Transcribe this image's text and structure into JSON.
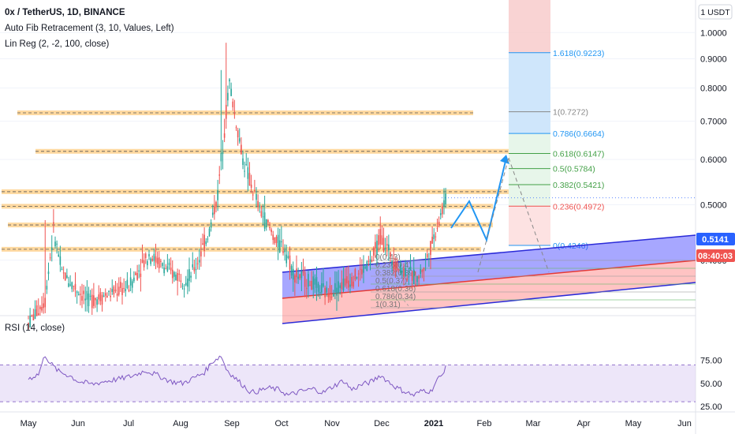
{
  "header": {
    "symbol_line": "0x / TetherUS, 1D, BINANCE",
    "indicator_1": "Auto Fib Retracement (3, 10, Values, Left)",
    "indicator_2": "Lin Reg (2, -2, 100, close)",
    "currency_badge": "1 USDT",
    "rsi_label": "RSI (14, close)"
  },
  "price_tags": {
    "last_price": "0.5141",
    "countdown": "08:40:03"
  },
  "colors": {
    "up": "#26a69a",
    "down": "#ef5350",
    "fib_blue": "#2196f3",
    "rsi_line": "#7e57c2",
    "rsi_band": "#e1d5f5",
    "level_band": "#ffcc80",
    "level_line": "#f0a020",
    "lr_blue": "#2a2ad8",
    "lr_red": "#e53935",
    "arrow": "#2196f3"
  },
  "chart_data": {
    "type": "candlestick",
    "title": "0x / TetherUS, 1D, BINANCE",
    "xlabel": "",
    "ylabel": "",
    "x_ticks": [
      "May",
      "Jun",
      "Jul",
      "Aug",
      "Sep",
      "Oct",
      "Nov",
      "Dec",
      "2021",
      "Feb",
      "Mar",
      "Apr",
      "May",
      "Jun"
    ],
    "y_ticks": [
      "1.0000",
      "0.9000",
      "0.8000",
      "0.7000",
      "0.6000",
      "0.5000",
      "0.4000"
    ],
    "ylim": [
      0.32,
      1.07
    ],
    "log_scale": true,
    "price_path": [
      [
        0,
        0.31
      ],
      [
        10,
        0.34
      ],
      [
        15,
        0.45
      ],
      [
        20,
        0.38
      ],
      [
        35,
        0.34
      ],
      [
        50,
        0.35
      ],
      [
        60,
        0.36
      ],
      [
        72,
        0.41
      ],
      [
        85,
        0.38
      ],
      [
        95,
        0.37
      ],
      [
        100,
        0.39
      ],
      [
        108,
        0.45
      ],
      [
        113,
        0.52
      ],
      [
        117,
        0.68
      ],
      [
        120,
        0.82
      ],
      [
        123,
        0.72
      ],
      [
        128,
        0.6
      ],
      [
        133,
        0.54
      ],
      [
        138,
        0.49
      ],
      [
        143,
        0.46
      ],
      [
        148,
        0.43
      ],
      [
        153,
        0.42
      ],
      [
        158,
        0.38
      ],
      [
        165,
        0.37
      ],
      [
        172,
        0.36
      ],
      [
        178,
        0.35
      ],
      [
        185,
        0.36
      ],
      [
        192,
        0.37
      ],
      [
        198,
        0.38
      ],
      [
        205,
        0.4
      ],
      [
        210,
        0.44
      ],
      [
        214,
        0.42
      ],
      [
        220,
        0.39
      ],
      [
        226,
        0.38
      ],
      [
        232,
        0.37
      ],
      [
        236,
        0.39
      ],
      [
        241,
        0.43
      ],
      [
        246,
        0.48
      ],
      [
        249,
        0.51
      ]
    ],
    "horizontal_levels": [
      0.724,
      0.62,
      0.527,
      0.497,
      0.461,
      0.418
    ],
    "fib_levels": [
      {
        "label": "1.618(0.9223)",
        "value": 0.9223
      },
      {
        "label": "1(0.7272)",
        "value": 0.7272
      },
      {
        "label": "0.786(0.6664)",
        "value": 0.6664
      },
      {
        "label": "0.618(0.6147)",
        "value": 0.6147
      },
      {
        "label": "0.5(0.5784)",
        "value": 0.5784
      },
      {
        "label": "0.382(0.5421)",
        "value": 0.5421
      },
      {
        "label": "0.236(0.4972)",
        "value": 0.4972
      },
      {
        "label": "0(0.4246)",
        "value": 0.4246
      }
    ],
    "small_fib_labels": [
      "0(0.43)",
      "0.236(0.4)",
      "0.382(0.39)",
      "0.5(0.37)",
      "0.618(0.36)",
      "0.786(0.34)",
      "1(0.31)"
    ],
    "rsi": {
      "label": "RSI (14, close)",
      "levels": [
        "75.00",
        "50.00",
        "25.00"
      ],
      "upper": 70,
      "lower": 30,
      "ylim": [
        25,
        85
      ],
      "values": [
        [
          0,
          55
        ],
        [
          6,
          60
        ],
        [
          10,
          81
        ],
        [
          13,
          72
        ],
        [
          18,
          63
        ],
        [
          25,
          58
        ],
        [
          30,
          52
        ],
        [
          38,
          49
        ],
        [
          45,
          52
        ],
        [
          55,
          55
        ],
        [
          62,
          58
        ],
        [
          70,
          64
        ],
        [
          78,
          58
        ],
        [
          85,
          52
        ],
        [
          92,
          50
        ],
        [
          100,
          57
        ],
        [
          105,
          62
        ],
        [
          110,
          74
        ],
        [
          115,
          80
        ],
        [
          118,
          66
        ],
        [
          122,
          58
        ],
        [
          128,
          48
        ],
        [
          133,
          40
        ],
        [
          138,
          42
        ],
        [
          143,
          45
        ],
        [
          150,
          43
        ],
        [
          155,
          37
        ],
        [
          162,
          41
        ],
        [
          170,
          44
        ],
        [
          176,
          40
        ],
        [
          182,
          47
        ],
        [
          188,
          53
        ],
        [
          193,
          43
        ],
        [
          198,
          48
        ],
        [
          205,
          52
        ],
        [
          210,
          59
        ],
        [
          214,
          53
        ],
        [
          220,
          45
        ],
        [
          226,
          40
        ],
        [
          230,
          37
        ],
        [
          236,
          43
        ],
        [
          240,
          41
        ],
        [
          244,
          54
        ],
        [
          247,
          59
        ],
        [
          249,
          70
        ]
      ]
    }
  }
}
